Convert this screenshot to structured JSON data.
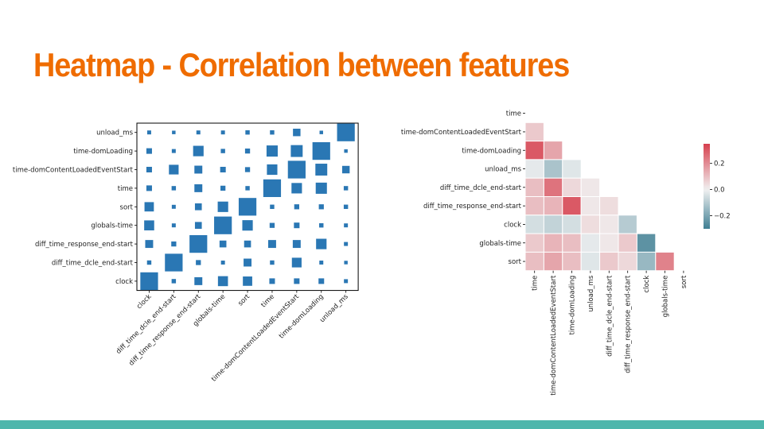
{
  "slide": {
    "title": "Heatmap - Correlation between features",
    "accent_color": "#ef6c00",
    "bar_color": "#4db6ac"
  },
  "chart_data": [
    {
      "type": "heatmap",
      "style": "square-size matrix",
      "title": "",
      "rows": [
        "unload_ms",
        "time-domLoading",
        "time-domContentLoadedEventStart",
        "time",
        "sort",
        "globals-time",
        "diff_time_response_end-start",
        "diff_time_dcle_end-start",
        "clock"
      ],
      "columns": [
        "clock",
        "diff_time_dcle_end-start",
        "diff_time_response_end-start",
        "globals-time",
        "sort",
        "time",
        "time-domContentLoadedEventStart",
        "time-domLoading",
        "unload_ms"
      ],
      "values": [
        [
          0.05,
          0.04,
          0.05,
          0.05,
          0.06,
          0.06,
          0.18,
          0.04,
          1.0
        ],
        [
          0.1,
          0.05,
          0.35,
          0.06,
          0.08,
          0.4,
          0.45,
          1.0,
          0.04
        ],
        [
          0.1,
          0.3,
          0.2,
          0.1,
          0.08,
          0.35,
          1.0,
          0.45,
          0.18
        ],
        [
          0.1,
          0.06,
          0.2,
          0.08,
          0.06,
          1.0,
          0.35,
          0.4,
          0.06
        ],
        [
          0.28,
          0.05,
          0.15,
          0.35,
          1.0,
          0.06,
          0.08,
          0.08,
          0.06
        ],
        [
          0.32,
          0.05,
          0.15,
          1.0,
          0.35,
          0.08,
          0.1,
          0.06,
          0.05
        ],
        [
          0.2,
          0.08,
          1.0,
          0.15,
          0.15,
          0.2,
          0.2,
          0.35,
          0.05
        ],
        [
          0.06,
          1.0,
          0.08,
          0.05,
          0.2,
          0.06,
          0.3,
          0.05,
          0.04
        ],
        [
          1.0,
          0.06,
          0.2,
          0.32,
          0.28,
          0.1,
          0.1,
          0.1,
          0.05
        ]
      ],
      "color": "#2a77b4"
    },
    {
      "type": "heatmap",
      "style": "lower-triangle diverging",
      "title": "",
      "rows": [
        "time",
        "time-domContentLoadedEventStart",
        "time-domLoading",
        "unload_ms",
        "diff_time_dcle_end-start",
        "diff_time_response_end-start",
        "clock",
        "globals-time",
        "sort"
      ],
      "columns": [
        "time",
        "time-domContentLoadedEventStart",
        "time-domLoading",
        "unload_ms",
        "diff_time_dcle_end-start",
        "diff_time_response_end-start",
        "clock",
        "globals-time",
        "sort"
      ],
      "values": [
        [],
        [
          0.08
        ],
        [
          0.3,
          0.15
        ],
        [
          -0.02,
          -0.12,
          -0.03
        ],
        [
          0.1,
          0.25,
          0.05,
          0.02
        ],
        [
          0.1,
          0.12,
          0.3,
          0.02,
          0.04
        ],
        [
          -0.05,
          -0.08,
          -0.05,
          0.04,
          0.02,
          -0.1
        ],
        [
          0.08,
          0.12,
          0.1,
          -0.02,
          0.02,
          0.08,
          -0.25
        ],
        [
          0.1,
          0.15,
          0.1,
          -0.03,
          0.08,
          0.05,
          -0.15,
          0.22
        ]
      ],
      "colorbar": {
        "ticks": [
          0.2,
          0.0,
          -0.2
        ],
        "tick_labels": [
          "0.2",
          "0.0",
          "−0.2"
        ],
        "range": [
          -0.3,
          0.35
        ]
      },
      "colors": {
        "positive": "#d6404e",
        "neutral": "#f1f1f1",
        "negative": "#3f7f93"
      }
    }
  ]
}
